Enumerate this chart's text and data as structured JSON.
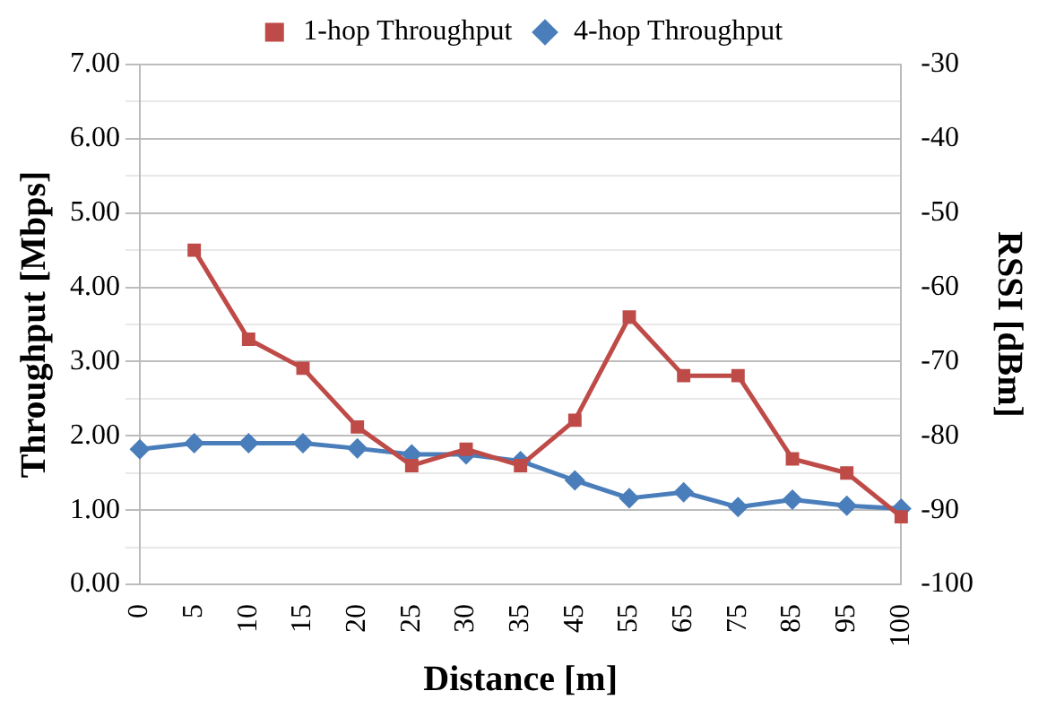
{
  "chart_data": {
    "type": "line",
    "xlabel": "Distance [m]",
    "ylabel": "Throughput [Mbps]",
    "y2label": "RSSI [dBm]",
    "categories": [
      "0",
      "5",
      "10",
      "15",
      "20",
      "25",
      "30",
      "35",
      "45",
      "55",
      "65",
      "75",
      "85",
      "95",
      "100"
    ],
    "series": [
      {
        "name": "4-hop Throughput",
        "color": "#4a7ebb",
        "marker": "diamond",
        "values": [
          1.82,
          1.9,
          1.9,
          1.9,
          1.83,
          1.75,
          1.75,
          1.66,
          1.4,
          1.16,
          1.24,
          1.04,
          1.14,
          1.06,
          1.02
        ]
      },
      {
        "name": "1-hop Throughput",
        "color": "#be4b48",
        "marker": "square",
        "values": [
          null,
          4.5,
          3.3,
          2.91,
          2.12,
          1.6,
          1.82,
          1.6,
          2.21,
          3.6,
          2.81,
          2.81,
          1.69,
          1.5,
          0.91
        ]
      }
    ],
    "ylim": [
      0,
      7
    ],
    "yticks": [
      {
        "value": 0,
        "label": "0.00"
      },
      {
        "value": 0.5,
        "label": null
      },
      {
        "value": 1,
        "label": "1.00"
      },
      {
        "value": 1.5,
        "label": null
      },
      {
        "value": 2,
        "label": "2.00"
      },
      {
        "value": 2.5,
        "label": null
      },
      {
        "value": 3,
        "label": "3.00"
      },
      {
        "value": 3.5,
        "label": null
      },
      {
        "value": 4,
        "label": "4.00"
      },
      {
        "value": 4.5,
        "label": null
      },
      {
        "value": 5,
        "label": "5.00"
      },
      {
        "value": 5.5,
        "label": null
      },
      {
        "value": 6,
        "label": "6.00"
      },
      {
        "value": 6.5,
        "label": null
      },
      {
        "value": 7,
        "label": "7.00"
      }
    ],
    "y2lim": [
      -100,
      -30
    ],
    "y2ticks": [
      -100,
      -90,
      -80,
      -70,
      -60,
      -50,
      -40,
      -30
    ],
    "grid": "y",
    "legend": "top",
    "line_style": "solid"
  }
}
